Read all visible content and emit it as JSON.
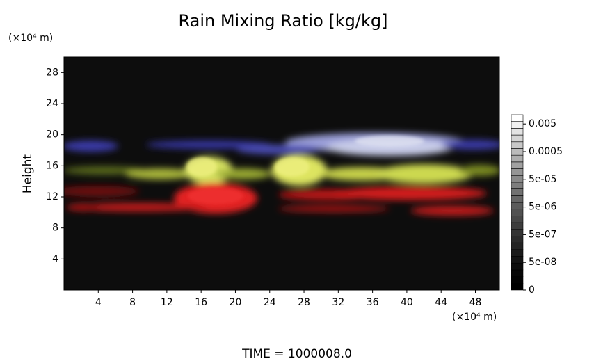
{
  "chart_data": {
    "type": "volume",
    "title": "Rain Mixing Ratio [kg/kg]",
    "y_unit": "(×10⁴ m)",
    "x_unit": "(×10⁴ m)",
    "ylabel": "Height",
    "xlim": [
      0,
      50.8
    ],
    "xticks": [
      4,
      8,
      12,
      16,
      20,
      24,
      28,
      32,
      36,
      40,
      44,
      48
    ],
    "ylim": [
      0,
      30
    ],
    "yticks": [
      4,
      8,
      12,
      16,
      20,
      24,
      28
    ],
    "colorbar_ticks": [
      0,
      {
        "value": 5e-08,
        "label": "5e-08"
      },
      {
        "value": 5e-07,
        "label": "5e-07"
      },
      {
        "value": 5e-06,
        "label": "5e-06"
      },
      {
        "value": 5e-05,
        "label": "5e-05"
      },
      0.0005,
      0.005
    ],
    "footer": "TIME  =  1000008.0"
  }
}
